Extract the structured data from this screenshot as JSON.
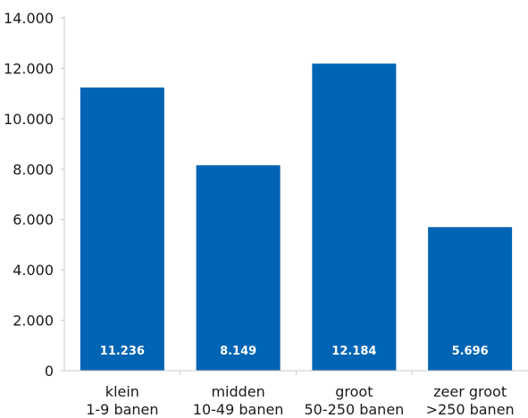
{
  "chart_data": {
    "type": "bar",
    "categories": [
      [
        "klein",
        "1-9 banen"
      ],
      [
        "midden",
        "10-49 banen"
      ],
      [
        "groot",
        "50-250 banen"
      ],
      [
        "zeer groot",
        ">250 banen"
      ]
    ],
    "values": [
      11236,
      8149,
      12184,
      5696
    ],
    "value_labels": [
      "11.236",
      "8.149",
      "12.184",
      "5.696"
    ],
    "y_ticks": [
      0,
      2000,
      4000,
      6000,
      8000,
      10000,
      12000,
      14000
    ],
    "y_tick_labels": [
      "0",
      "2.000",
      "4.000",
      "6.000",
      "8.000",
      "10.000",
      "12.000",
      "14.000"
    ],
    "ylim": [
      0,
      14000
    ],
    "title": "",
    "xlabel": "",
    "ylabel": "",
    "grid": false,
    "bar_color": "#0064b4",
    "label_color": "#ffffff"
  }
}
